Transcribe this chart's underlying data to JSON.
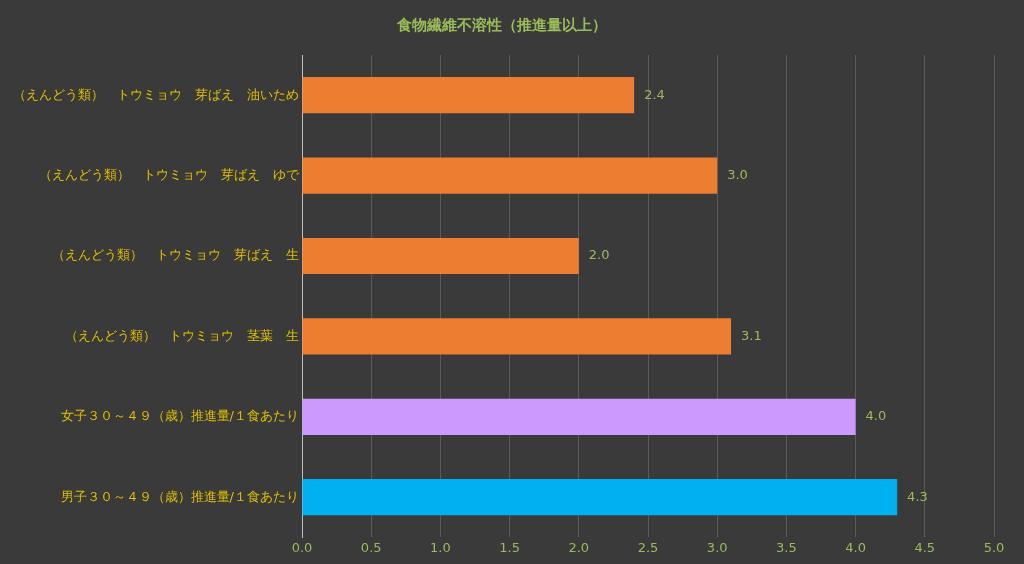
{
  "chart_data": {
    "type": "bar",
    "orientation": "horizontal",
    "title": "食物繊維不溶性（推進量以上）",
    "categories": [
      "（えんどう類）　トウミョウ　芽ばえ　油いため",
      "（えんどう類）　トウミョウ　芽ばえ　ゆで",
      "（えんどう類）　トウミョウ　芽ばえ　生",
      "（えんどう類）　トウミョウ　茎葉　生",
      "女子３０～４９（歳）推進量/１食あたり",
      "男子３０～４９（歳）推進量/１食あたり"
    ],
    "values": [
      2.4,
      3.0,
      2.0,
      3.1,
      4.0,
      4.3
    ],
    "colors": [
      "#ed7d31",
      "#ed7d31",
      "#ed7d31",
      "#ed7d31",
      "#cc99ff",
      "#00b0f0"
    ],
    "xlim": [
      0,
      5
    ],
    "xticks": [
      {
        "value": 0,
        "label": "0.0"
      },
      {
        "value": 0.5,
        "label": "0.5"
      },
      {
        "value": 1,
        "label": "1.0"
      },
      {
        "value": 1.5,
        "label": "1.5"
      },
      {
        "value": 2,
        "label": "2.0"
      },
      {
        "value": 2.5,
        "label": "2.5"
      },
      {
        "value": 3,
        "label": "3.0"
      },
      {
        "value": 3.5,
        "label": "3.5"
      },
      {
        "value": 4,
        "label": "4.0"
      },
      {
        "value": 4.5,
        "label": "4.5"
      },
      {
        "value": 5,
        "label": "5.0"
      }
    ],
    "value_labels": [
      "2.4",
      "3.0",
      "2.0",
      "3.1",
      "4.0",
      "4.3"
    ],
    "grid": "x",
    "legend": false
  }
}
